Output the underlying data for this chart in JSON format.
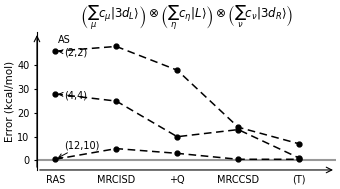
{
  "title": "$\\left(\\sum_{\\mu} c_{\\mu}|3d_L\\rangle\\right) \\otimes \\left(\\sum_{\\eta} c_{\\eta}|L\\rangle\\right) \\otimes \\left(\\sum_{\\nu} c_{\\nu}|3d_R\\rangle\\right)$",
  "xlabel_ticks": [
    "RAS",
    "MRCISD",
    "+Q",
    "MRCCSD",
    "(T)"
  ],
  "ylabel": "Error (kcal/mol)",
  "ylim": [
    -4,
    54
  ],
  "yticks": [
    0,
    10,
    20,
    30,
    40
  ],
  "series": [
    {
      "label": "(2,2)",
      "values": [
        46,
        48,
        38,
        14,
        7
      ],
      "color": "#000000"
    },
    {
      "label": "(4,4)",
      "values": [
        28,
        25,
        10,
        13,
        1
      ],
      "color": "#000000"
    },
    {
      "label": "(12,10)",
      "values": [
        0.5,
        5,
        3,
        0.5,
        0.5
      ],
      "color": "#000000"
    }
  ],
  "as_label": "AS",
  "hline_y": 0,
  "hline_color": "#999999",
  "background_color": "#ffffff",
  "title_fontsize": 8.5,
  "axis_label_fontsize": 7.5,
  "tick_fontsize": 7,
  "annotation_fontsize": 7
}
